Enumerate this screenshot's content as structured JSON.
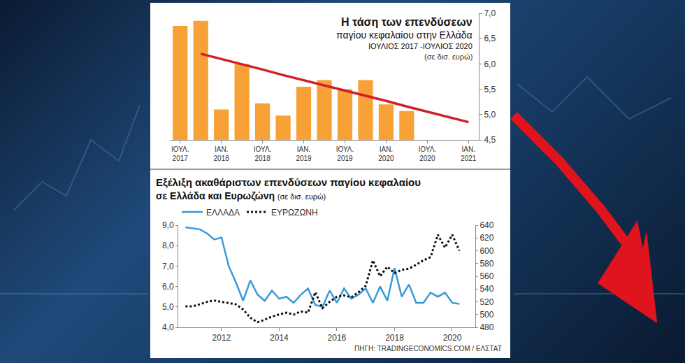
{
  "chart_data": [
    {
      "type": "bar",
      "title": "Η τάση των επενδύσεων",
      "subtitle": "παγίου κεφαλαίου στην Ελλάδα",
      "annotations": [
        "ΙΟΥΛΙΟΣ 2017 -ΙΟΥΛΙΟΣ 2020",
        "(σε δισ. ευρώ)"
      ],
      "categories": [
        "ΙΟΥΛ. 2017",
        null,
        "ΙΑΝ. 2018",
        null,
        "ΙΟΥΛ. 2018",
        null,
        "ΙΑΝ. 2019",
        null,
        "ΙΟΥΛ. 2019",
        null,
        "ΙΑΝ. 2020",
        null,
        "ΙΟΥΛ. 2020",
        null,
        "ΙΑΝ. 2021"
      ],
      "series": [
        {
          "type": "bar",
          "color": "#f7a136",
          "values": [
            6.75,
            6.85,
            5.1,
            6.0,
            5.22,
            4.98,
            5.55,
            5.68,
            5.5,
            5.68,
            5.2,
            5.07,
            null,
            null,
            null
          ]
        },
        {
          "type": "line",
          "color": "#d0202a",
          "line_style": "solid",
          "values": [
            null,
            6.2,
            6.1,
            6.0,
            5.89,
            5.78,
            5.68,
            5.58,
            5.47,
            5.37,
            5.27,
            5.16,
            5.06,
            4.95,
            4.85
          ]
        }
      ],
      "ylim": [
        4.5,
        7.0
      ],
      "yticks": [
        {
          "value": 4.5,
          "label": "4,5"
        },
        {
          "value": 5.0,
          "label": "5,0"
        },
        {
          "value": 5.5,
          "label": "5,5"
        },
        {
          "value": 6.0,
          "label": "6,0"
        },
        {
          "value": 6.5,
          "label": "6,5"
        },
        {
          "value": 7.0,
          "label": "7,0"
        }
      ],
      "grid": false
    },
    {
      "type": "line",
      "title": "Εξέλιξη ακαθάριστων επενδύσεων παγίου κεφαλαίου",
      "subtitle": "σε Ελλάδα και Ευρωζώνη",
      "annotations": [
        "(σε δισ. ευρώ)"
      ],
      "source": "ΠΗΓΗ: TRADINGECONOMICS.COM / ΕΛΣΤΑΤ",
      "x": [
        2010.75,
        2011.0,
        2011.25,
        2011.5,
        2011.75,
        2012.0,
        2012.25,
        2012.5,
        2012.75,
        2013.0,
        2013.25,
        2013.5,
        2013.75,
        2014.0,
        2014.25,
        2014.5,
        2014.75,
        2015.0,
        2015.25,
        2015.5,
        2015.75,
        2016.0,
        2016.25,
        2016.5,
        2016.75,
        2017.0,
        2017.25,
        2017.5,
        2017.75,
        2018.0,
        2018.25,
        2018.5,
        2018.75,
        2019.0,
        2019.25,
        2019.5,
        2019.75,
        2020.0,
        2020.25
      ],
      "series": [
        {
          "name": "ΕΛΛΑΔΑ",
          "color": "#3a9ad9",
          "line_style": "solid",
          "values": [
            8.9,
            8.85,
            8.8,
            8.6,
            8.3,
            8.4,
            7.0,
            6.2,
            5.3,
            6.3,
            5.6,
            5.3,
            5.8,
            5.4,
            5.5,
            5.2,
            5.6,
            5.9,
            5.1,
            5.0,
            5.8,
            5.2,
            5.9,
            5.4,
            5.6,
            5.9,
            5.2,
            6.0,
            5.3,
            6.9,
            5.5,
            6.1,
            5.2,
            5.2,
            5.7,
            5.5,
            5.7,
            5.2,
            5.15
          ]
        },
        {
          "name": "ΕΥΡΩΖΩΝΗ",
          "color": "#111111",
          "line_style": "dotted",
          "axis": "y2",
          "values": [
            513,
            513,
            516,
            520,
            522,
            520,
            518,
            516,
            508,
            495,
            488,
            492,
            497,
            500,
            503,
            500,
            505,
            503,
            535,
            510,
            520,
            528,
            530,
            527,
            535,
            545,
            585,
            560,
            575,
            565,
            570,
            572,
            578,
            585,
            590,
            625,
            605,
            625,
            600
          ]
        }
      ],
      "xlim": [
        2010.5,
        2020.8
      ],
      "xticks": [
        2012,
        2014,
        2016,
        2018,
        2020
      ],
      "ylim": [
        4.0,
        9.0
      ],
      "yticks": [
        {
          "value": 4.0,
          "label": "4,0"
        },
        {
          "value": 5.0,
          "label": "5,0"
        },
        {
          "value": 6.0,
          "label": "6,0"
        },
        {
          "value": 7.0,
          "label": "7,0"
        },
        {
          "value": 8.0,
          "label": "8,0"
        },
        {
          "value": 9.0,
          "label": "9,0"
        }
      ],
      "y2lim": [
        480,
        640
      ],
      "y2ticks": [
        480,
        500,
        520,
        540,
        560,
        580,
        600,
        620,
        640
      ],
      "legend": "top left",
      "grid": false
    }
  ]
}
